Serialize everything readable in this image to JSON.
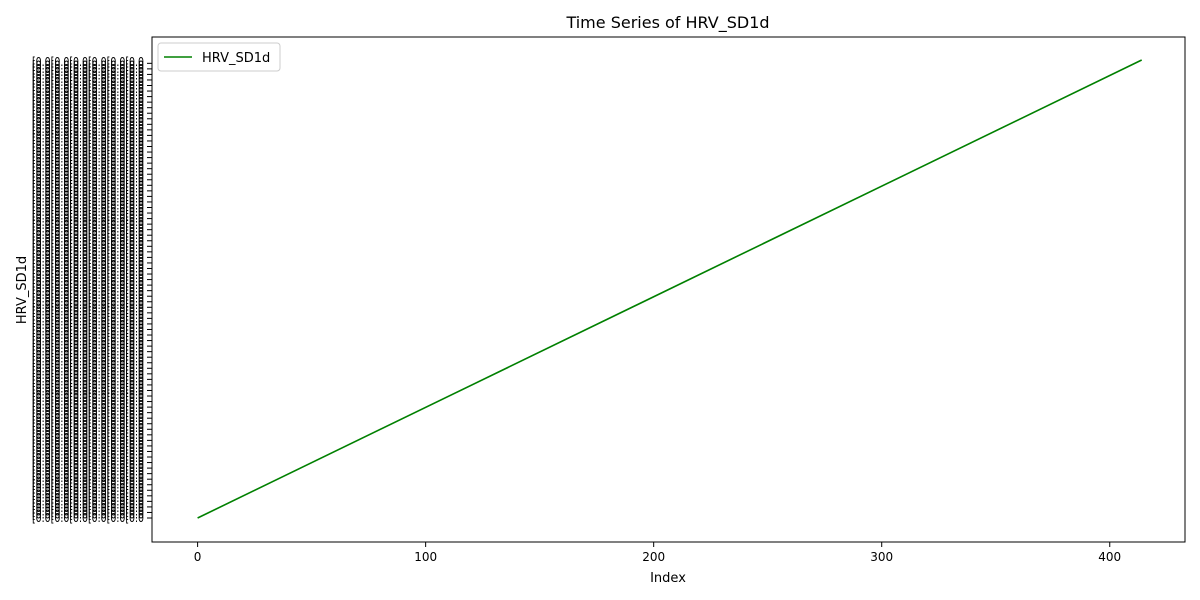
{
  "chart_data": {
    "type": "line",
    "title": "Time Series of HRV_SD1d",
    "xlabel": "Index",
    "ylabel": "HRV_SD1d",
    "xlim": [
      -20,
      433
    ],
    "x_ticks": [
      0,
      100,
      200,
      300,
      400
    ],
    "series": [
      {
        "name": "HRV_SD1d",
        "color": "#008000",
        "x": [
          0,
          414
        ],
        "y_category_index": [
          0,
          413
        ]
      }
    ],
    "y_category_count": 414,
    "y_tick_labels_overlapping": true,
    "y_tick_label_sample": [
      "[0.0",
      "[0.0",
      "[0.0",
      "[0.0",
      "[0.0",
      "[0.0",
      "[0.0",
      "[0.0",
      "[0.0",
      "[0.0",
      "[0.0",
      "[0.0",
      "[0.0",
      "[0.0",
      "[0.0",
      "[0.0",
      "[0.0",
      "[0.0",
      "[0.0",
      "[0.0",
      "[0.0",
      "[0.0",
      "[0.0",
      "[0.0",
      "[0.0",
      "[0.0",
      "[0.0",
      "[0.0",
      "[0.0",
      "[0.0",
      "[0.0",
      "[0.0",
      "[0.0",
      "[0.0",
      "[0.0",
      "[0.0",
      "[0.0",
      "[0.0",
      "[0.0",
      "[0.0"
    ],
    "legend": {
      "position": "top-left",
      "entries": [
        "HRV_SD1d"
      ]
    },
    "grid": false
  }
}
